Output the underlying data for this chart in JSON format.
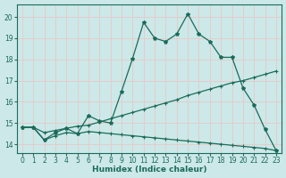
{
  "xlabel": "Humidex (Indice chaleur)",
  "bg_color": "#cce8e8",
  "grid_color": "#e8c8c8",
  "line_color": "#1a6b5a",
  "xlim": [
    -0.5,
    23.5
  ],
  "ylim": [
    13.6,
    20.6
  ],
  "xticks": [
    0,
    1,
    2,
    3,
    4,
    5,
    6,
    7,
    8,
    9,
    10,
    11,
    12,
    13,
    14,
    15,
    16,
    17,
    18,
    19,
    20,
    21,
    22,
    23
  ],
  "yticks": [
    14,
    15,
    16,
    17,
    18,
    19,
    20
  ],
  "line1_x": [
    0,
    1,
    2,
    3,
    4,
    5,
    6,
    7,
    8,
    9,
    10,
    11,
    12,
    13,
    14,
    15,
    16,
    17,
    18,
    19,
    20,
    21,
    22,
    23
  ],
  "line1_y": [
    14.8,
    14.8,
    14.2,
    14.4,
    14.55,
    14.5,
    14.6,
    14.55,
    14.5,
    14.45,
    14.4,
    14.35,
    14.3,
    14.25,
    14.2,
    14.15,
    14.1,
    14.05,
    14.0,
    13.95,
    13.9,
    13.85,
    13.8,
    13.7
  ],
  "line2_x": [
    0,
    1,
    2,
    3,
    4,
    5,
    6,
    7,
    8,
    9,
    10,
    11,
    12,
    13,
    14,
    15,
    16,
    17,
    18,
    19,
    20,
    21,
    22,
    23
  ],
  "line2_y": [
    14.8,
    14.8,
    14.55,
    14.65,
    14.75,
    14.85,
    14.9,
    15.05,
    15.2,
    15.35,
    15.5,
    15.65,
    15.8,
    15.95,
    16.1,
    16.3,
    16.45,
    16.6,
    16.75,
    16.9,
    17.0,
    17.15,
    17.3,
    17.45
  ],
  "line3_x": [
    0,
    1,
    2,
    3,
    4,
    5,
    6,
    7,
    8,
    9,
    10,
    11,
    12,
    13,
    14,
    15,
    16,
    17,
    18,
    19,
    20,
    21,
    22,
    23
  ],
  "line3_y": [
    14.8,
    14.8,
    14.2,
    14.55,
    14.75,
    14.5,
    15.35,
    15.1,
    15.0,
    16.5,
    18.05,
    19.75,
    19.0,
    18.85,
    19.2,
    20.15,
    19.2,
    18.85,
    18.1,
    18.1,
    16.65,
    15.85,
    14.7,
    13.7
  ]
}
